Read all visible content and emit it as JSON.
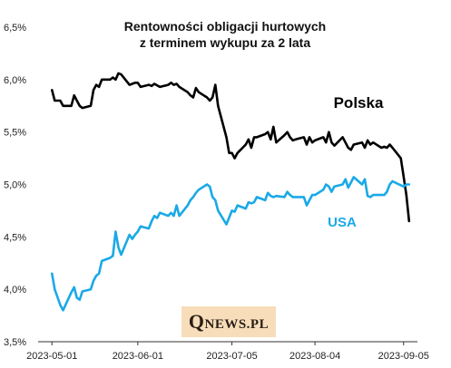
{
  "chart_data": {
    "type": "line",
    "title": [
      "Rentowności obligacji hurtowych",
      "z terminem wykupu za 2 lata"
    ],
    "xlabel": "",
    "ylabel": "",
    "ylim": [
      3.5,
      6.5
    ],
    "yticks": [
      "3,5%",
      "4,0%",
      "4,5%",
      "5,0%",
      "5,5%",
      "6,0%",
      "6,5%"
    ],
    "yticks_values": [
      3.5,
      4.0,
      4.5,
      5.0,
      5.5,
      6.0,
      6.5
    ],
    "xlim": [
      "2023-04-26",
      "2023-09-10"
    ],
    "xticks": [
      "2023-05-01",
      "2023-06-01",
      "2023-07-05",
      "2023-08-04",
      "2023-09-05"
    ],
    "grid": false,
    "legend": "labels-in-plot",
    "series": [
      {
        "name": "Polska",
        "color": "#000000",
        "x": [
          "2023-05-01",
          "2023-05-02",
          "2023-05-04",
          "2023-05-05",
          "2023-05-08",
          "2023-05-09",
          "2023-05-10",
          "2023-05-11",
          "2023-05-12",
          "2023-05-15",
          "2023-05-16",
          "2023-05-17",
          "2023-05-18",
          "2023-05-19",
          "2023-05-22",
          "2023-05-23",
          "2023-05-24",
          "2023-05-25",
          "2023-05-26",
          "2023-05-29",
          "2023-05-30",
          "2023-05-31",
          "2023-06-01",
          "2023-06-02",
          "2023-06-05",
          "2023-06-06",
          "2023-06-07",
          "2023-06-09",
          "2023-06-12",
          "2023-06-13",
          "2023-06-14",
          "2023-06-15",
          "2023-06-16",
          "2023-06-19",
          "2023-06-20",
          "2023-06-21",
          "2023-06-22",
          "2023-06-23",
          "2023-06-26",
          "2023-06-27",
          "2023-06-28",
          "2023-06-29",
          "2023-06-30",
          "2023-07-03",
          "2023-07-04",
          "2023-07-05",
          "2023-07-06",
          "2023-07-07",
          "2023-07-10",
          "2023-07-11",
          "2023-07-12",
          "2023-07-13",
          "2023-07-14",
          "2023-07-17",
          "2023-07-18",
          "2023-07-19",
          "2023-07-20",
          "2023-07-21",
          "2023-07-24",
          "2023-07-25",
          "2023-07-26",
          "2023-07-27",
          "2023-07-28",
          "2023-07-31",
          "2023-08-01",
          "2023-08-02",
          "2023-08-03",
          "2023-08-04",
          "2023-08-07",
          "2023-08-08",
          "2023-08-09",
          "2023-08-10",
          "2023-08-11",
          "2023-08-14",
          "2023-08-16",
          "2023-08-17",
          "2023-08-18",
          "2023-08-21",
          "2023-08-22",
          "2023-08-23",
          "2023-08-24",
          "2023-08-25",
          "2023-08-28",
          "2023-08-29",
          "2023-08-30",
          "2023-08-31",
          "2023-09-01",
          "2023-09-04",
          "2023-09-05",
          "2023-09-06",
          "2023-09-07"
        ],
        "y": [
          5.9,
          5.8,
          5.8,
          5.75,
          5.75,
          5.85,
          5.8,
          5.75,
          5.73,
          5.75,
          5.9,
          5.95,
          5.93,
          6.0,
          6.0,
          6.02,
          6.0,
          6.06,
          6.05,
          5.95,
          5.96,
          5.97,
          5.97,
          5.93,
          5.95,
          5.94,
          5.96,
          5.93,
          5.95,
          5.97,
          5.95,
          5.96,
          5.93,
          5.88,
          5.85,
          5.83,
          5.92,
          5.88,
          5.83,
          5.8,
          5.83,
          5.95,
          5.75,
          5.45,
          5.3,
          5.3,
          5.25,
          5.3,
          5.38,
          5.43,
          5.35,
          5.45,
          5.45,
          5.48,
          5.5,
          5.43,
          5.55,
          5.4,
          5.47,
          5.5,
          5.45,
          5.42,
          5.43,
          5.45,
          5.38,
          5.45,
          5.4,
          5.42,
          5.45,
          5.4,
          5.5,
          5.4,
          5.37,
          5.45,
          5.35,
          5.33,
          5.38,
          5.4,
          5.35,
          5.42,
          5.38,
          5.4,
          5.35,
          5.36,
          5.35,
          5.38,
          5.35,
          5.25,
          5.08,
          4.9,
          4.65
        ]
      },
      {
        "name": "USA",
        "color": "#1aa9e6",
        "x": [
          "2023-05-01",
          "2023-05-02",
          "2023-05-04",
          "2023-05-05",
          "2023-05-08",
          "2023-05-09",
          "2023-05-10",
          "2023-05-11",
          "2023-05-12",
          "2023-05-15",
          "2023-05-16",
          "2023-05-17",
          "2023-05-18",
          "2023-05-19",
          "2023-05-22",
          "2023-05-23",
          "2023-05-24",
          "2023-05-25",
          "2023-05-26",
          "2023-05-29",
          "2023-05-30",
          "2023-05-31",
          "2023-06-01",
          "2023-06-02",
          "2023-06-05",
          "2023-06-06",
          "2023-06-07",
          "2023-06-08",
          "2023-06-09",
          "2023-06-12",
          "2023-06-13",
          "2023-06-14",
          "2023-06-15",
          "2023-06-16",
          "2023-06-19",
          "2023-06-20",
          "2023-06-21",
          "2023-06-22",
          "2023-06-23",
          "2023-06-26",
          "2023-06-27",
          "2023-06-28",
          "2023-06-29",
          "2023-06-30",
          "2023-07-03",
          "2023-07-05",
          "2023-07-06",
          "2023-07-07",
          "2023-07-10",
          "2023-07-11",
          "2023-07-12",
          "2023-07-13",
          "2023-07-14",
          "2023-07-17",
          "2023-07-18",
          "2023-07-19",
          "2023-07-20",
          "2023-07-21",
          "2023-07-24",
          "2023-07-25",
          "2023-07-26",
          "2023-07-27",
          "2023-07-28",
          "2023-07-31",
          "2023-08-01",
          "2023-08-02",
          "2023-08-03",
          "2023-08-04",
          "2023-08-07",
          "2023-08-08",
          "2023-08-09",
          "2023-08-10",
          "2023-08-11",
          "2023-08-14",
          "2023-08-15",
          "2023-08-16",
          "2023-08-17",
          "2023-08-18",
          "2023-08-21",
          "2023-08-22",
          "2023-08-23",
          "2023-08-24",
          "2023-08-25",
          "2023-08-28",
          "2023-08-29",
          "2023-08-30",
          "2023-08-31",
          "2023-09-01",
          "2023-09-05",
          "2023-09-06",
          "2023-09-07"
        ],
        "y": [
          4.15,
          4.0,
          3.85,
          3.8,
          3.97,
          4.02,
          3.92,
          3.9,
          3.98,
          4.0,
          4.08,
          4.13,
          4.15,
          4.27,
          4.3,
          4.32,
          4.55,
          4.4,
          4.33,
          4.52,
          4.48,
          4.52,
          4.55,
          4.6,
          4.58,
          4.65,
          4.7,
          4.68,
          4.73,
          4.7,
          4.73,
          4.7,
          4.8,
          4.7,
          4.8,
          4.85,
          4.88,
          4.92,
          4.95,
          5.0,
          4.98,
          4.88,
          4.85,
          4.75,
          4.62,
          4.75,
          4.74,
          4.8,
          4.77,
          4.83,
          4.82,
          4.83,
          4.88,
          4.85,
          4.92,
          4.89,
          4.88,
          4.89,
          4.88,
          4.93,
          4.9,
          4.88,
          4.88,
          4.88,
          4.8,
          4.85,
          4.9,
          4.9,
          4.95,
          5.0,
          4.98,
          4.93,
          4.98,
          5.0,
          5.05,
          4.97,
          5.02,
          5.07,
          5.0,
          5.05,
          4.89,
          4.88,
          4.9,
          4.9,
          4.9,
          4.93,
          5.0,
          5.03,
          4.98,
          5.0,
          5.0
        ]
      }
    ]
  },
  "labels": {
    "polska": "Polska",
    "usa": "USA"
  },
  "watermark": {
    "q": "Q",
    "rest": "NEWS.PL"
  }
}
